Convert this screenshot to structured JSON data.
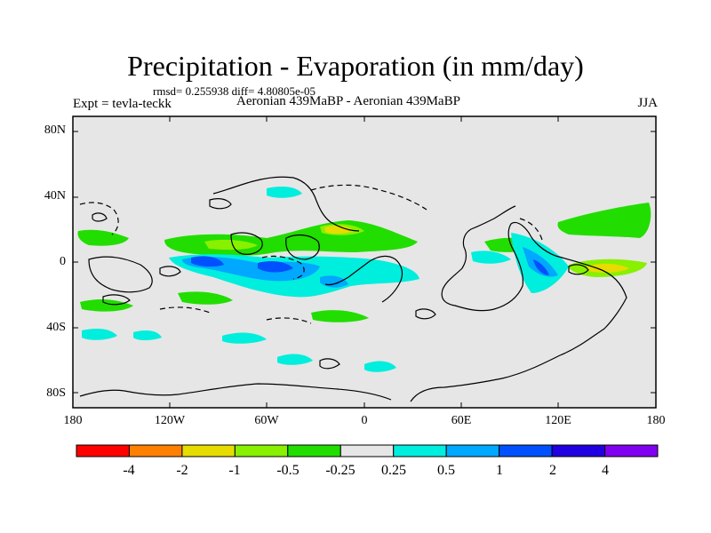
{
  "title": "Precipitation - Evaporation (in mm/day)",
  "stats": "rmsd= 0.255938 diff= 4.80805e-05",
  "expt_label": "Expt = tevla-teckk",
  "experiment_name": "Aeronian 439MaBP - Aeronian 439MaBP",
  "season": "JJA",
  "lat_labels": [
    "80N",
    "40N",
    "0",
    "40S",
    "80S"
  ],
  "lon_labels": [
    "180",
    "120W",
    "60W",
    "0",
    "60E",
    "120E",
    "180"
  ],
  "colorbar": {
    "colors": [
      "#ff0000",
      "#ff8000",
      "#e6dc00",
      "#88f000",
      "#22dd00",
      "#e6e6e6",
      "#00eedd",
      "#00a8ff",
      "#0050ff",
      "#2000e0",
      "#8000f0"
    ],
    "labels": [
      "-4",
      "-2",
      "-1",
      "-0.5",
      "-0.25",
      "0.25",
      "0.5",
      "1",
      "2",
      "4"
    ]
  },
  "colors": {
    "ocean_background": "#e6e6e6",
    "coastline": "#000000"
  }
}
